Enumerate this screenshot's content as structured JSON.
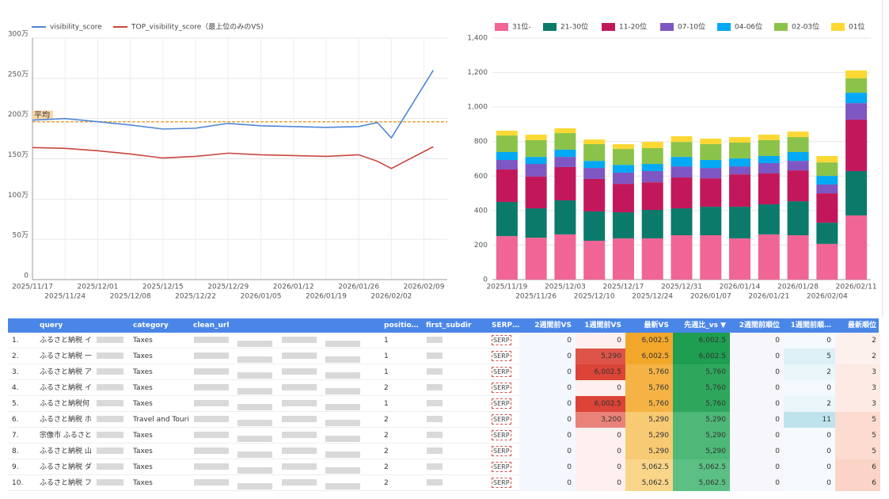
{
  "chart_data": [
    {
      "type": "line",
      "x": [
        "2025/11/17",
        "2025/11/24",
        "2025/12/01",
        "2025/12/08",
        "2025/12/15",
        "2025/12/22",
        "2025/12/29",
        "2026/01/05",
        "2026/01/12",
        "2026/01/19",
        "2026/01/26",
        "2026/01/30",
        "2026/02/02",
        "2026/02/11"
      ],
      "series": [
        {
          "name": "visibility_score",
          "color": "#4f86d9",
          "values": [
            1980000,
            2000000,
            1960000,
            1920000,
            1870000,
            1880000,
            1940000,
            1910000,
            1900000,
            1890000,
            1900000,
            1950000,
            1760000,
            2600000
          ]
        },
        {
          "name": "TOP_visibility_score（最上位のみのVS)",
          "color": "#c9463d",
          "values": [
            1640000,
            1630000,
            1600000,
            1560000,
            1510000,
            1530000,
            1570000,
            1550000,
            1540000,
            1530000,
            1550000,
            1470000,
            1380000,
            1650000
          ]
        }
      ],
      "average": {
        "label": "平均",
        "value": 1960000,
        "color": "#e8a33d"
      },
      "xlim": [
        "2025/11/17",
        "2026/02/14"
      ],
      "xticks": [
        "2025/11/17",
        "2025/11/24",
        "2025/12/01",
        "2025/12/08",
        "2025/12/15",
        "2025/12/22",
        "2025/12/29",
        "2026/01/05",
        "2026/01/12",
        "2026/01/19",
        "2026/01/26",
        "2026/02/02",
        "2026/02/09"
      ],
      "ylim": [
        0,
        3000000
      ],
      "yticks": [
        0,
        {
          "value": 500000,
          "label": "50万"
        },
        {
          "value": 1000000,
          "label": "100万"
        },
        {
          "value": 1500000,
          "label": "150万"
        },
        {
          "value": 2000000,
          "label": "200万"
        },
        {
          "value": 2500000,
          "label": "250万"
        },
        {
          "value": 3000000,
          "label": "300万"
        }
      ],
      "grid": true
    },
    {
      "type": "stacked_bar",
      "categories": [
        "2025/11/19",
        "2025/11/26",
        "2025/12/03",
        "2025/12/10",
        "2025/12/17",
        "2025/12/24",
        "2025/12/31",
        "2026/01/07",
        "2026/01/14",
        "2026/01/21",
        "2026/01/28",
        "2026/02/04",
        "2026/02/11"
      ],
      "series": [
        {
          "name": "31位-",
          "color": "#f06595",
          "values": [
            252,
            243,
            262,
            225,
            239,
            239,
            257,
            257,
            239,
            262,
            257,
            207,
            372
          ]
        },
        {
          "name": "21-30位",
          "color": "#0b7a6b",
          "values": [
            198,
            170,
            197,
            170,
            151,
            165,
            156,
            165,
            183,
            174,
            197,
            123,
            257
          ]
        },
        {
          "name": "11-20位",
          "color": "#c2185b",
          "values": [
            188,
            184,
            193,
            188,
            165,
            160,
            179,
            165,
            188,
            179,
            179,
            170,
            298
          ]
        },
        {
          "name": "07-10位",
          "color": "#7e57c2",
          "values": [
            55,
            73,
            59,
            64,
            65,
            65,
            64,
            60,
            46,
            60,
            55,
            51,
            96
          ]
        },
        {
          "name": "04-06位",
          "color": "#03a9f4",
          "values": [
            46,
            41,
            42,
            41,
            45,
            41,
            55,
            46,
            46,
            41,
            51,
            50,
            60
          ]
        },
        {
          "name": "02-03位",
          "color": "#8bc34a",
          "values": [
            96,
            97,
            96,
            97,
            92,
            92,
            87,
            92,
            92,
            92,
            87,
            78,
            83
          ]
        },
        {
          "name": "01位",
          "color": "#fdd835",
          "values": [
            28,
            32,
            28,
            27,
            28,
            36,
            33,
            32,
            32,
            32,
            32,
            37,
            46
          ]
        }
      ],
      "ylim": [
        0,
        1400
      ],
      "yticks": [
        0,
        200,
        400,
        600,
        800,
        {
          "value": 1000,
          "label": "1,000"
        },
        {
          "value": 1200,
          "label": "1,200"
        },
        {
          "value": 1400,
          "label": "1,400"
        }
      ],
      "grid": true
    }
  ],
  "table": {
    "header": [
      "query",
      "category",
      "clean_url",
      "positio…",
      "first_subdir",
      "SERP…",
      "2週間前VS",
      "1週間前VS",
      "最新VS",
      "先週比_vs ▼",
      "2週間前順位",
      "1週間前順…",
      "最新順位"
    ],
    "row_numbers": [
      "1.",
      "2.",
      "3.",
      "4.",
      "5.",
      "6.",
      "7.",
      "8.",
      "9.",
      "10."
    ],
    "rows": [
      [
        "ふるさと納税 イ",
        "Taxes",
        null,
        "1",
        null,
        "SERP",
        "0",
        "0",
        "6,002.5",
        "6,002.5",
        "0",
        "0",
        "2"
      ],
      [
        "ふるさと納税 一",
        "Taxes",
        null,
        "1",
        null,
        "SERP",
        "0",
        "5,290",
        "6,002.5",
        "6,002.5",
        "0",
        "5",
        "2"
      ],
      [
        "ふるさと納税 ア",
        "Taxes",
        null,
        "1",
        null,
        "SERP",
        "0",
        "6,002.5",
        "5,760",
        "5,760",
        "0",
        "2",
        "3"
      ],
      [
        "ふるさと納税 イ",
        "Taxes",
        null,
        "2",
        null,
        "SERP",
        "0",
        "0",
        "5,760",
        "5,760",
        "0",
        "0",
        "3"
      ],
      [
        "ふるさと納税何",
        "Taxes",
        null,
        "1",
        null,
        "SERP",
        "0",
        "6,002.5",
        "5,760",
        "5,760",
        "0",
        "2",
        "3"
      ],
      [
        "ふるさと納税 ホ",
        "Travel and Touri…",
        null,
        "2",
        null,
        "SERP",
        "0",
        "3,200",
        "5,290",
        "5,290",
        "0",
        "11",
        "5"
      ],
      [
        "宗像市 ふるさと",
        "Taxes",
        null,
        "2",
        null,
        "SERP",
        "0",
        "0",
        "5,290",
        "5,290",
        "0",
        "0",
        "5"
      ],
      [
        "ふるさと納税 山",
        "Taxes",
        null,
        "2",
        null,
        "SERP",
        "0",
        "0",
        "5,290",
        "5,290",
        "0",
        "0",
        "5"
      ],
      [
        "ふるさと納税 ダ",
        "Taxes",
        null,
        "2",
        null,
        "SERP",
        "0",
        "0",
        "5,062.5",
        "5,062.5",
        "0",
        "0",
        "6"
      ],
      [
        "ふるさと納税 フ",
        "Taxes",
        null,
        "2",
        null,
        "SERP",
        "0",
        "0",
        "5,062.5",
        "5,062.5",
        "0",
        "0",
        "6"
      ]
    ]
  }
}
